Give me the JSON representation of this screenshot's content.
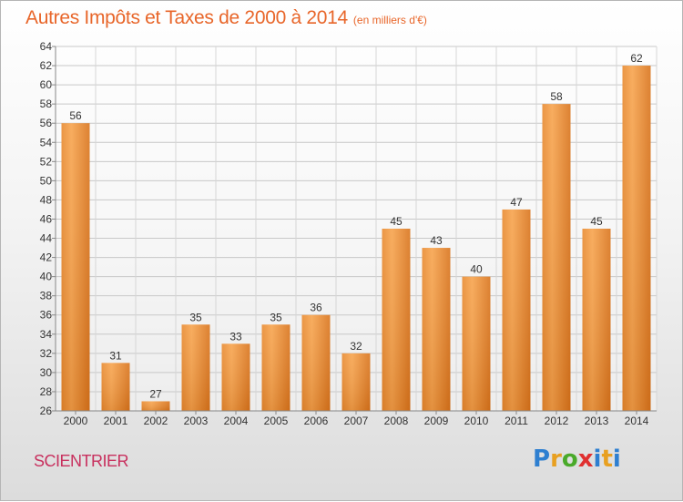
{
  "header": {
    "title": "Autres Impôts et Taxes de 2000 à 2014",
    "subtitle": "(en milliers d'€)"
  },
  "footer": {
    "commune": "SCIENTRIER",
    "logo": "Proxiti"
  },
  "colors": {
    "title": "#e8662a",
    "commune": "#c8305e",
    "bar_light": "#f7a44e",
    "bar_dark": "#d9741c"
  },
  "chart_data": {
    "type": "bar",
    "categories": [
      "2000",
      "2001",
      "2002",
      "2003",
      "2004",
      "2005",
      "2006",
      "2007",
      "2008",
      "2009",
      "2010",
      "2011",
      "2012",
      "2013",
      "2014"
    ],
    "values": [
      56,
      31,
      27,
      35,
      33,
      35,
      36,
      32,
      45,
      43,
      40,
      47,
      58,
      45,
      62
    ],
    "ylim": [
      26,
      64
    ],
    "ytick_step": 2,
    "grid": true,
    "legend": "none"
  }
}
